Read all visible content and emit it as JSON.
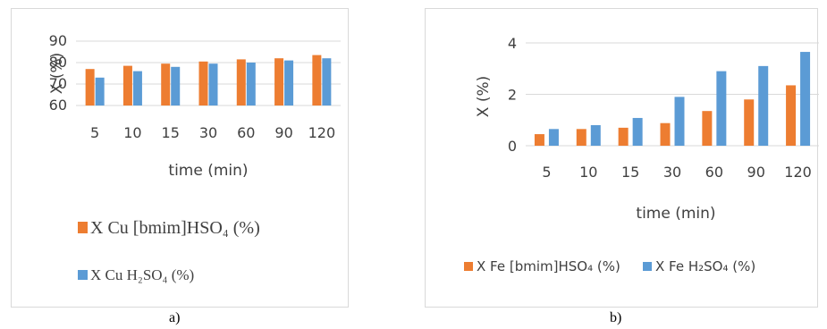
{
  "chart_data": [
    {
      "panel": "a",
      "type": "bar",
      "categories": [
        "5",
        "10",
        "15",
        "30",
        "60",
        "90",
        "120"
      ],
      "series": [
        {
          "name": "X Cu [bmim]HSO₄ (%)",
          "values": [
            77,
            78.5,
            79.5,
            80.5,
            81.5,
            82,
            83.5
          ],
          "color": "#ED7D31"
        },
        {
          "name": "X Cu H₂SO₄ (%)",
          "values": [
            73,
            76,
            78,
            79.5,
            80,
            81,
            82
          ],
          "color": "#5B9BD5"
        }
      ],
      "xlabel": "time (min)",
      "ylabel": "X (%)",
      "ylim": [
        60,
        90
      ],
      "yticks": [
        "60",
        "70",
        "80",
        "90"
      ],
      "grid": true,
      "legend_position": "bottom"
    },
    {
      "panel": "b",
      "type": "bar",
      "categories": [
        "5",
        "10",
        "15",
        "30",
        "60",
        "90",
        "120"
      ],
      "series": [
        {
          "name": "X Fe [bmim]HSO₄ (%)",
          "values": [
            0.45,
            0.65,
            0.7,
            0.88,
            1.35,
            1.8,
            2.35
          ],
          "color": "#ED7D31"
        },
        {
          "name": "X Fe H₂SO₄ (%)",
          "values": [
            0.65,
            0.8,
            1.08,
            1.9,
            2.9,
            3.1,
            3.65
          ],
          "color": "#5B9BD5"
        }
      ],
      "xlabel": "time (min)",
      "ylabel": "X (%)",
      "ylim": [
        0,
        4
      ],
      "yticks": [
        "0",
        "2",
        "4"
      ],
      "grid": true,
      "legend_position": "bottom"
    }
  ],
  "captions": {
    "a": "a)",
    "b": "b)"
  }
}
